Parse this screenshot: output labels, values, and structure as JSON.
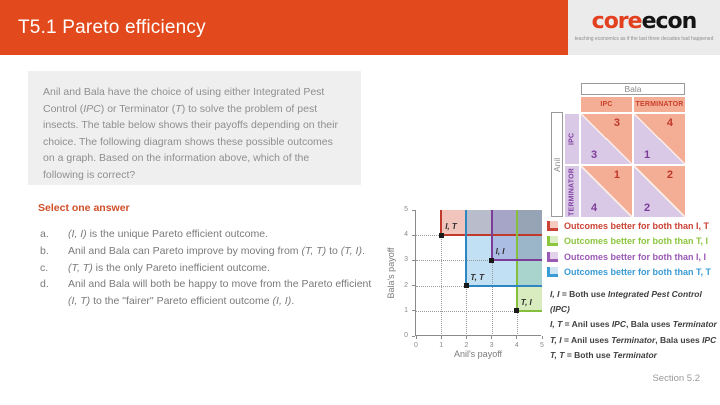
{
  "header": {
    "title": "T5.1 Pareto efficiency",
    "logo": {
      "part1": "core",
      "part2": "econ",
      "tagline": "teaching economics as if the last three decades had happened"
    }
  },
  "question": {
    "rich": [
      {
        "t": "Anil and Bala have the choice of using either Integrated Pest Control ("
      },
      {
        "t": "IPC",
        "i": true
      },
      {
        "t": ") or Terminator ("
      },
      {
        "t": "T",
        "i": true
      },
      {
        "t": ") to solve the problem of pest insects. The table below shows their payoffs depending on their choice. The following diagram shows these possible outcomes on a graph. Based on the information above, which of the following is correct?"
      }
    ]
  },
  "answers": {
    "prompt": "Select one answer",
    "options": [
      {
        "letter": "a.",
        "rich": [
          {
            "t": "(I, I)",
            "i": true
          },
          {
            "t": " is the unique Pareto efficient outcome."
          }
        ]
      },
      {
        "letter": "b.",
        "rich": [
          {
            "t": "Anil and Bala can Pareto improve by moving from "
          },
          {
            "t": "(T, T)",
            "i": true
          },
          {
            "t": " to "
          },
          {
            "t": "(T, I)",
            "i": true
          },
          {
            "t": "."
          }
        ]
      },
      {
        "letter": "c.",
        "rich": [
          {
            "t": "(T, T)",
            "i": true
          },
          {
            "t": " is the only Pareto inefficient outcome."
          }
        ]
      },
      {
        "letter": "d.",
        "rich": [
          {
            "t": "Anil and Bala will both be happy to move from the Pareto efficient "
          },
          {
            "t": "(I, T)",
            "i": true
          },
          {
            "t": " to the \"fairer\" Pareto efficient outcome "
          },
          {
            "t": "(I, I)",
            "i": true
          },
          {
            "t": "."
          }
        ]
      }
    ]
  },
  "payoff_table": {
    "col_player": "Bala",
    "row_player": "Anil",
    "col_headers": [
      "IPC",
      "TERMINATOR"
    ],
    "row_headers": [
      "IPC",
      "TERMINATOR"
    ],
    "rows": [
      [
        {
          "anil": 3,
          "bala": 3
        },
        {
          "anil": 1,
          "bala": 4
        }
      ],
      [
        {
          "anil": 4,
          "bala": 1
        },
        {
          "anil": 2,
          "bala": 2
        }
      ]
    ],
    "colors": {
      "bala_bg": "#f4ae96",
      "bala_text": "#c9402c",
      "anil_bg": "#d9c9e7",
      "anil_text": "#7d3c98",
      "diag_line": "#fbeee9"
    }
  },
  "chart_data": {
    "type": "scatter",
    "xlabel": "Anil's payoff",
    "ylabel": "Bala's payoff",
    "xlim": [
      0,
      5
    ],
    "ylim": [
      0,
      5
    ],
    "xticks": [
      "0",
      "1",
      "2",
      "3",
      "4",
      "5"
    ],
    "yticks": [
      "0",
      "1",
      "2",
      "3",
      "4",
      "5"
    ],
    "points": [
      {
        "label": "I, T",
        "x": 1,
        "y": 4,
        "color": "#c0392b",
        "fill": "rgba(217,90,63,0.35)"
      },
      {
        "label": "T, I",
        "x": 4,
        "y": 1,
        "color": "#86bf3e",
        "fill": "rgba(140,198,63,0.33)"
      },
      {
        "label": "I, I",
        "x": 3,
        "y": 3,
        "color": "#7d3c98",
        "fill": "rgba(142,68,173,0.30)"
      },
      {
        "label": "T, T",
        "x": 2,
        "y": 2,
        "color": "#2e86c1",
        "fill": "rgba(93,173,226,0.38)"
      }
    ],
    "regions_note": "each point anchors a translucent rectangle extending to (5,5) with solid left and bottom edges; dotted guides run from each point to both axes",
    "legend": [
      {
        "label": "Outcomes better for both than I, T",
        "color": "#cb4335",
        "tint": "#f6cabe"
      },
      {
        "label": "Outcomes better for both than T, I",
        "color": "#8cc63f",
        "tint": "#ddeec6"
      },
      {
        "label": "Outcomes better for both than I, I",
        "color": "#9b59b6",
        "tint": "#e2d2ec"
      },
      {
        "label": "Outcomes better for both than T, T",
        "color": "#3a9bd5",
        "tint": "#cfe5f4"
      }
    ],
    "key": [
      {
        "rich": [
          {
            "t": "I, I",
            "i": true
          },
          {
            "t": " = Both use "
          },
          {
            "t": "Integrated Pest Control (IPC)",
            "i": true
          }
        ]
      },
      {
        "rich": [
          {
            "t": "I, T",
            "i": true
          },
          {
            "t": " = Anil uses "
          },
          {
            "t": "IPC",
            "i": true
          },
          {
            "t": ", Bala uses "
          },
          {
            "t": "Terminator",
            "i": true
          }
        ]
      },
      {
        "rich": [
          {
            "t": "T, I",
            "i": true
          },
          {
            "t": " = Anil uses "
          },
          {
            "t": "Terminator",
            "i": true
          },
          {
            "t": ", Bala uses "
          },
          {
            "t": "IPC",
            "i": true
          }
        ]
      },
      {
        "rich": [
          {
            "t": "T, T",
            "i": true
          },
          {
            "t": " = Both use "
          },
          {
            "t": "Terminator",
            "i": true
          }
        ]
      }
    ]
  },
  "footer": {
    "section": "Section 5.2"
  }
}
